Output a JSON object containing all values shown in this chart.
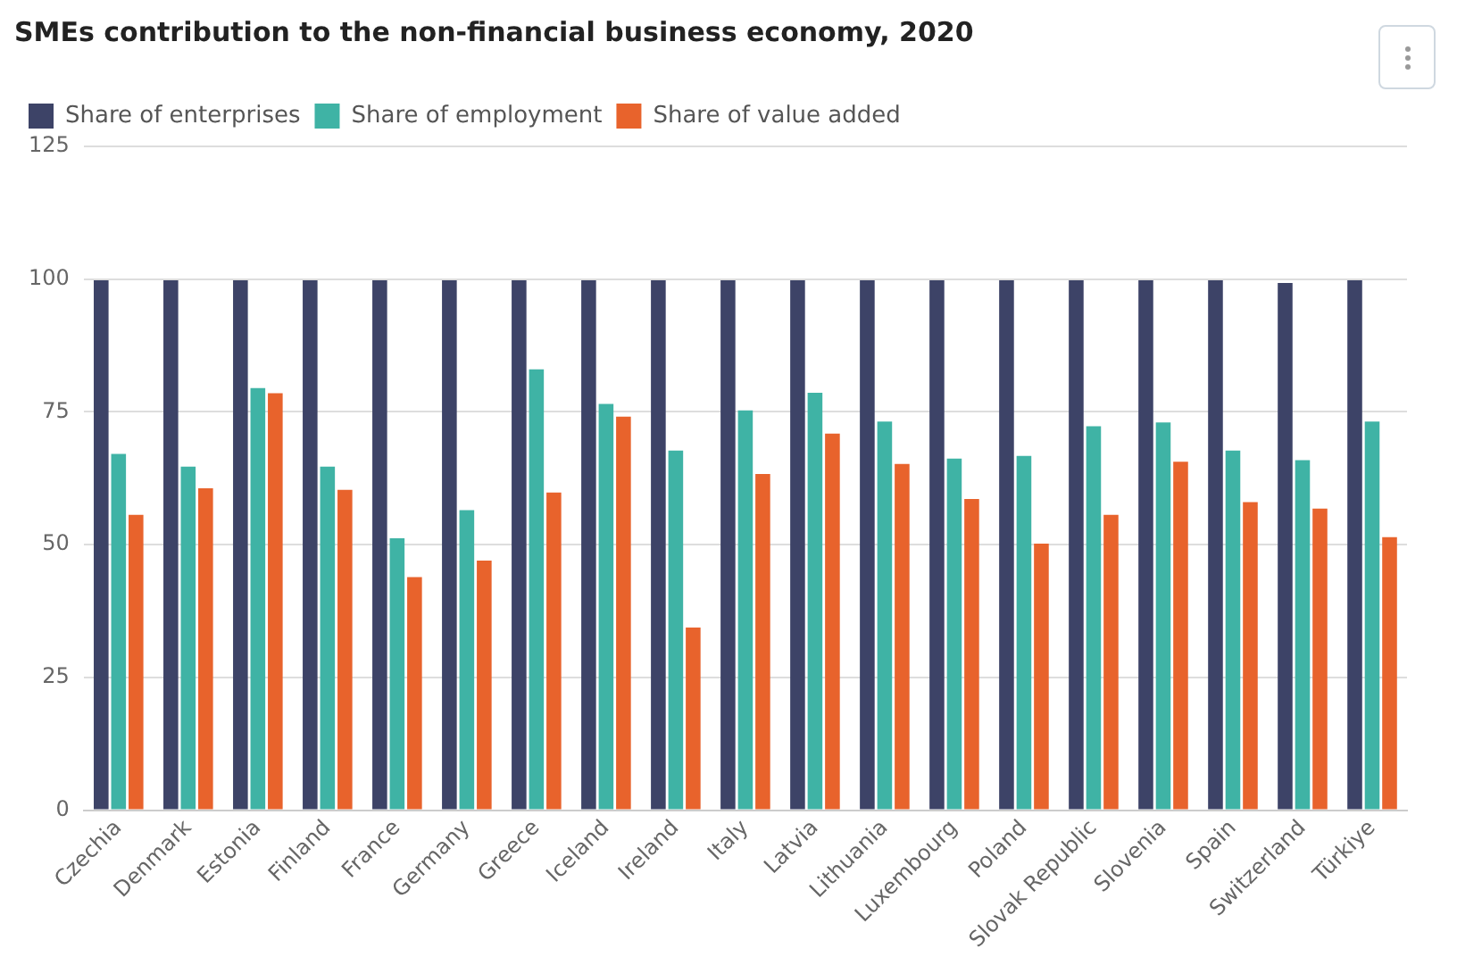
{
  "chart_data": {
    "type": "bar",
    "title": "SMEs contribution to the non-financial business economy, 2020",
    "categories": [
      "Czechia",
      "Denmark",
      "Estonia",
      "Finland",
      "France",
      "Germany",
      "Greece",
      "Iceland",
      "Ireland",
      "Italy",
      "Latvia",
      "Lithuania",
      "Luxembourg",
      "Poland",
      "Slovak Republic",
      "Slovenia",
      "Spain",
      "Switzerland",
      "Türkiye"
    ],
    "series": [
      {
        "name": "Share of enterprises",
        "color": "#3d4367",
        "values": [
          99.8,
          99.8,
          99.8,
          99.8,
          99.8,
          99.8,
          99.8,
          99.8,
          99.8,
          99.8,
          99.8,
          99.8,
          99.8,
          99.8,
          99.8,
          99.8,
          99.8,
          99.3,
          99.8
        ]
      },
      {
        "name": "Share of employment",
        "color": "#3fb3a5",
        "values": [
          67.1,
          64.7,
          79.5,
          64.7,
          51.2,
          56.5,
          83.0,
          76.5,
          67.7,
          75.3,
          78.6,
          73.2,
          66.2,
          66.7,
          72.3,
          73.0,
          67.7,
          65.9,
          73.2
        ]
      },
      {
        "name": "Share of value added",
        "color": "#e8632c",
        "values": [
          55.6,
          60.6,
          78.5,
          60.3,
          43.9,
          47.0,
          59.8,
          74.1,
          34.4,
          63.3,
          70.9,
          65.2,
          58.6,
          50.2,
          55.6,
          65.6,
          58.0,
          56.8,
          51.4
        ]
      }
    ],
    "ylim": [
      0,
      125
    ],
    "yticks": [
      0,
      25,
      50,
      75,
      100,
      125
    ],
    "grid": "y",
    "legend": "top left"
  }
}
